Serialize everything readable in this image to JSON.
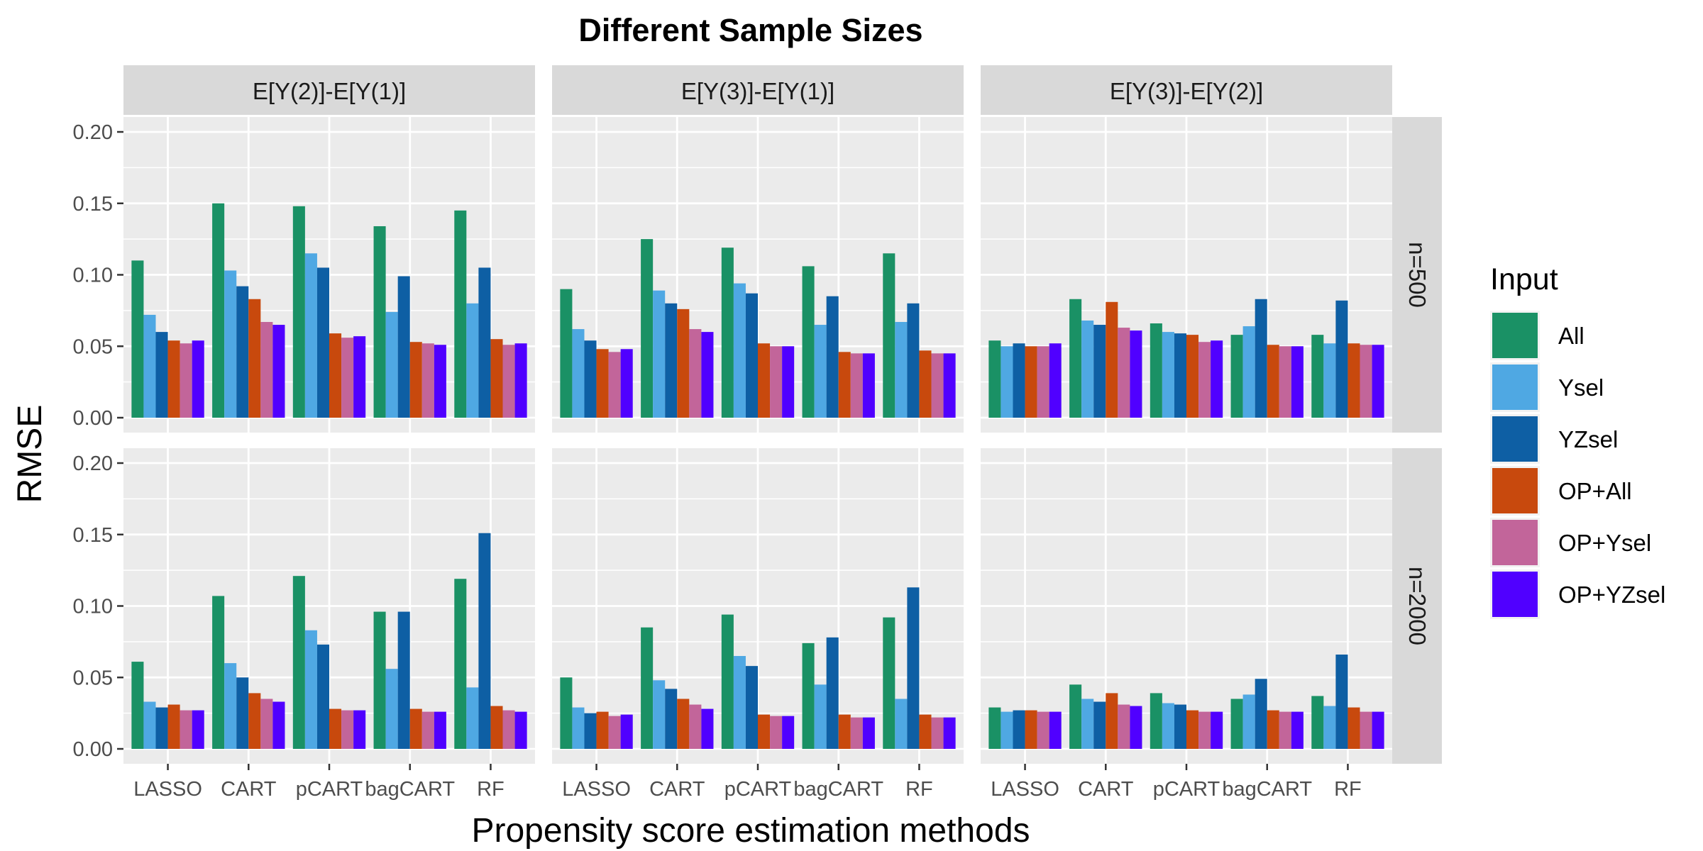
{
  "chart_data": {
    "type": "bar",
    "title": "Different Sample Sizes",
    "xlabel": "Propensity score estimation methods",
    "ylabel": "RMSE",
    "ylim": [
      0,
      0.2
    ],
    "yticks": [
      "0.00",
      "0.05",
      "0.10",
      "0.15",
      "0.20"
    ],
    "ytick_values": [
      0,
      0.05,
      0.1,
      0.15,
      0.2
    ],
    "grid": true,
    "legend_position": "right",
    "legend_title": "Input",
    "categories": [
      "LASSO",
      "CART",
      "pCART",
      "bagCART",
      "RF"
    ],
    "series_names": [
      "All",
      "Ysel",
      "YZsel",
      "OP+All",
      "OP+Ysel",
      "OP+YZsel"
    ],
    "series_colors": [
      "#1a9165",
      "#4fa8e3",
      "#0e5fa4",
      "#c8490d",
      "#c2659a",
      "#5000ff"
    ],
    "facet_cols": [
      "E[Y(2)]-E[Y(1)]",
      "E[Y(3)]-E[Y(1)]",
      "E[Y(3)]-E[Y(2)]"
    ],
    "facet_rows": [
      "n=500",
      "n=2000"
    ],
    "panels": [
      [
        {
          "values": [
            [
              0.11,
              0.072,
              0.06,
              0.054,
              0.052,
              0.054
            ],
            [
              0.15,
              0.103,
              0.092,
              0.083,
              0.067,
              0.065
            ],
            [
              0.148,
              0.115,
              0.105,
              0.059,
              0.056,
              0.057
            ],
            [
              0.134,
              0.074,
              0.099,
              0.053,
              0.052,
              0.051
            ],
            [
              0.145,
              0.08,
              0.105,
              0.055,
              0.051,
              0.052
            ]
          ]
        },
        {
          "values": [
            [
              0.09,
              0.062,
              0.054,
              0.048,
              0.046,
              0.048
            ],
            [
              0.125,
              0.089,
              0.08,
              0.076,
              0.062,
              0.06
            ],
            [
              0.119,
              0.094,
              0.087,
              0.052,
              0.05,
              0.05
            ],
            [
              0.106,
              0.065,
              0.085,
              0.046,
              0.045,
              0.045
            ],
            [
              0.115,
              0.067,
              0.08,
              0.047,
              0.045,
              0.045
            ]
          ]
        },
        {
          "values": [
            [
              0.054,
              0.05,
              0.052,
              0.05,
              0.05,
              0.052
            ],
            [
              0.083,
              0.068,
              0.065,
              0.081,
              0.063,
              0.061
            ],
            [
              0.066,
              0.06,
              0.059,
              0.058,
              0.053,
              0.054
            ],
            [
              0.058,
              0.064,
              0.083,
              0.051,
              0.05,
              0.05
            ],
            [
              0.058,
              0.052,
              0.082,
              0.052,
              0.051,
              0.051
            ]
          ]
        }
      ],
      [
        {
          "values": [
            [
              0.061,
              0.033,
              0.029,
              0.031,
              0.027,
              0.027
            ],
            [
              0.107,
              0.06,
              0.05,
              0.039,
              0.035,
              0.033
            ],
            [
              0.121,
              0.083,
              0.073,
              0.028,
              0.027,
              0.027
            ],
            [
              0.096,
              0.056,
              0.096,
              0.028,
              0.026,
              0.026
            ],
            [
              0.119,
              0.043,
              0.151,
              0.03,
              0.027,
              0.026
            ]
          ]
        },
        {
          "values": [
            [
              0.05,
              0.029,
              0.025,
              0.026,
              0.023,
              0.024
            ],
            [
              0.085,
              0.048,
              0.042,
              0.035,
              0.031,
              0.028
            ],
            [
              0.094,
              0.065,
              0.058,
              0.024,
              0.023,
              0.023
            ],
            [
              0.074,
              0.045,
              0.078,
              0.024,
              0.022,
              0.022
            ],
            [
              0.092,
              0.035,
              0.113,
              0.024,
              0.022,
              0.022
            ]
          ]
        },
        {
          "values": [
            [
              0.029,
              0.026,
              0.027,
              0.027,
              0.026,
              0.026
            ],
            [
              0.045,
              0.035,
              0.033,
              0.039,
              0.031,
              0.03
            ],
            [
              0.039,
              0.032,
              0.031,
              0.027,
              0.026,
              0.026
            ],
            [
              0.035,
              0.038,
              0.049,
              0.027,
              0.026,
              0.026
            ],
            [
              0.037,
              0.03,
              0.066,
              0.029,
              0.026,
              0.026
            ]
          ]
        }
      ]
    ]
  }
}
